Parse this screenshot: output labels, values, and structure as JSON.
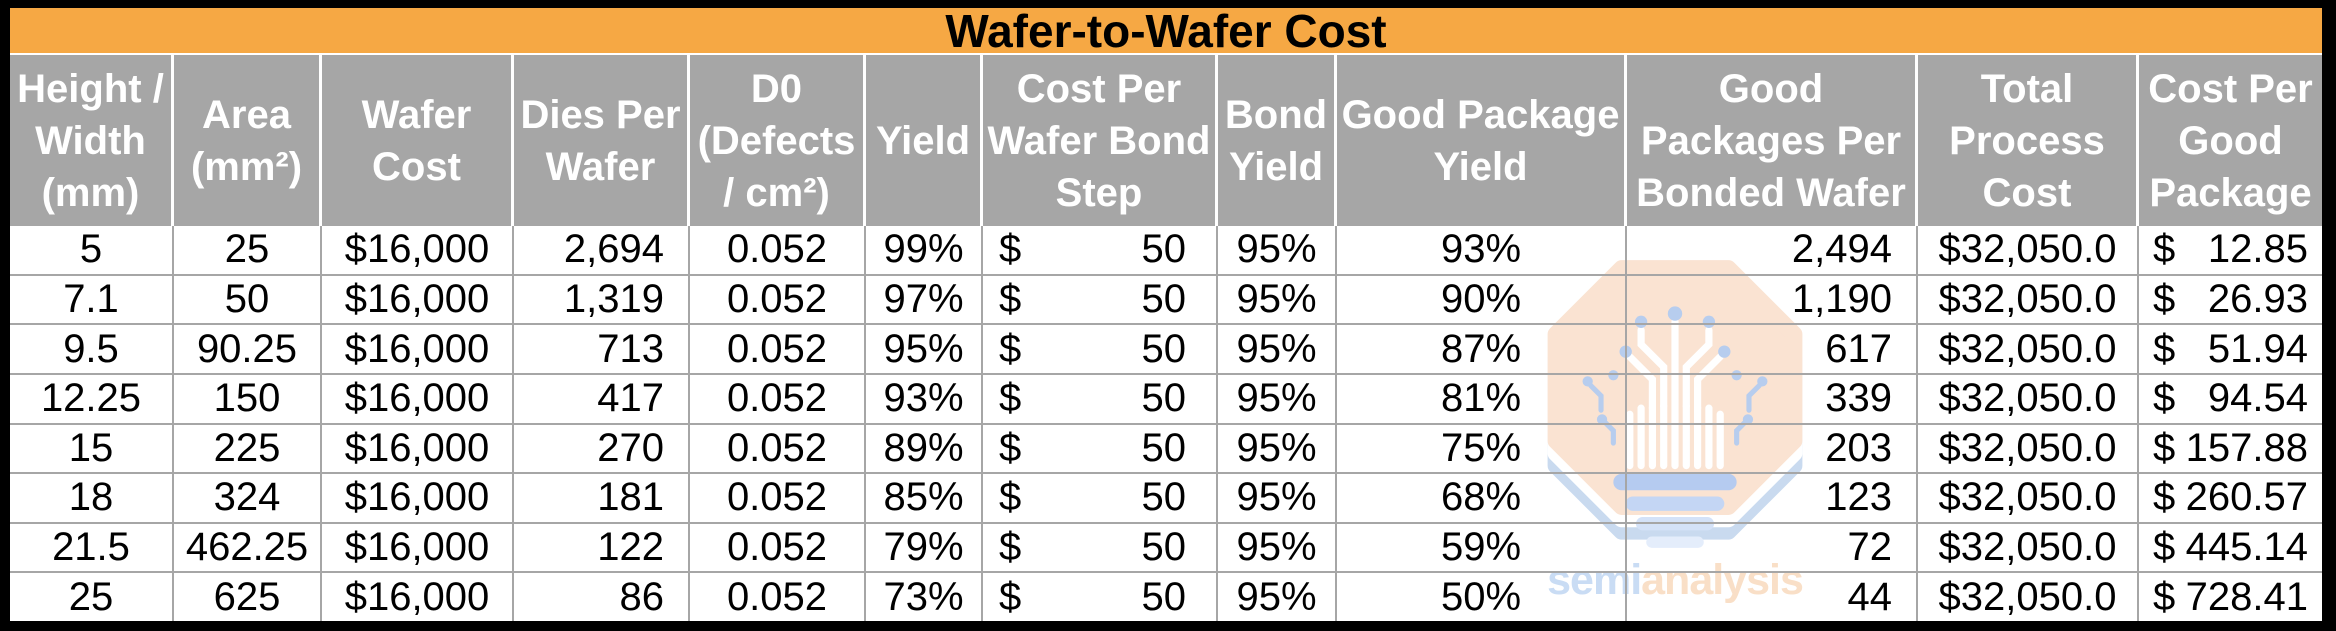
{
  "title": "Wafer-to-Wafer Cost",
  "chart_data": {
    "type": "table",
    "title": "Wafer-to-Wafer Cost",
    "columns": [
      {
        "label": "Height /\nWidth\n(mm)",
        "align": "center",
        "format": "plain"
      },
      {
        "label": "Area\n(mm²)",
        "align": "center",
        "format": "plain"
      },
      {
        "label": "Wafer\nCost",
        "align": "center",
        "format": "plain"
      },
      {
        "label": "Dies Per\nWafer",
        "align": "right",
        "format": "plain"
      },
      {
        "label": "D0\n(Defects\n/ cm²)",
        "align": "center",
        "format": "plain"
      },
      {
        "label": "Yield",
        "align": "center",
        "format": "plain"
      },
      {
        "label": "Cost Per\nWafer Bond\nStep",
        "align": "right",
        "format": "accounting"
      },
      {
        "label": "Bond\nYield",
        "align": "center",
        "format": "plain"
      },
      {
        "label": "Good Package\nYield",
        "align": "center",
        "format": "plain"
      },
      {
        "label": "Good\nPackages Per\nBonded Wafer",
        "align": "right",
        "format": "plain"
      },
      {
        "label": "Total\nProcess\nCost",
        "align": "center",
        "format": "plain"
      },
      {
        "label": "Cost Per\nGood\nPackage",
        "align": "right",
        "format": "accounting"
      }
    ],
    "rows": [
      [
        "5",
        "25",
        "$16,000",
        "2,694",
        "0.052",
        "99%",
        "$50",
        "95%",
        "93%",
        "2,494",
        "$32,050.0",
        "$12.85"
      ],
      [
        "7.1",
        "50",
        "$16,000",
        "1,319",
        "0.052",
        "97%",
        "$50",
        "95%",
        "90%",
        "1,190",
        "$32,050.0",
        "$26.93"
      ],
      [
        "9.5",
        "90.25",
        "$16,000",
        "713",
        "0.052",
        "95%",
        "$50",
        "95%",
        "87%",
        "617",
        "$32,050.0",
        "$51.94"
      ],
      [
        "12.25",
        "150",
        "$16,000",
        "417",
        "0.052",
        "93%",
        "$50",
        "95%",
        "81%",
        "339",
        "$32,050.0",
        "$94.54"
      ],
      [
        "15",
        "225",
        "$16,000",
        "270",
        "0.052",
        "89%",
        "$50",
        "95%",
        "75%",
        "203",
        "$32,050.0",
        "$157.88"
      ],
      [
        "18",
        "324",
        "$16,000",
        "181",
        "0.052",
        "85%",
        "$50",
        "95%",
        "68%",
        "123",
        "$32,050.0",
        "$260.57"
      ],
      [
        "21.5",
        "462.25",
        "$16,000",
        "122",
        "0.052",
        "79%",
        "$50",
        "95%",
        "59%",
        "72",
        "$32,050.0",
        "$445.14"
      ],
      [
        "25",
        "625",
        "$16,000",
        "86",
        "0.052",
        "73%",
        "$50",
        "95%",
        "50%",
        "44",
        "$32,050.0",
        "$728.41"
      ]
    ]
  },
  "watermark": {
    "brand_semi": "semi",
    "brand_analysis": "analysis"
  },
  "colors": {
    "title_bg": "#F6A844",
    "title_text": "#000000",
    "header_bg": "#A6A6A6",
    "header_text": "#FFFFFF",
    "header_divider": "#FFFFFF",
    "grid": "#A6A6A6",
    "frame": "#000000",
    "cell_bg": "#FFFFFF",
    "logo_peach": "#FAE3D2",
    "logo_shadow_blue": "#C9DAEF",
    "logo_dot_blue": "#B7CDEE",
    "logo_base_blue": "#B5CBF0",
    "logo_text_semi": "#C9DCF4",
    "logo_text_analysis": "#F9DFC7"
  }
}
